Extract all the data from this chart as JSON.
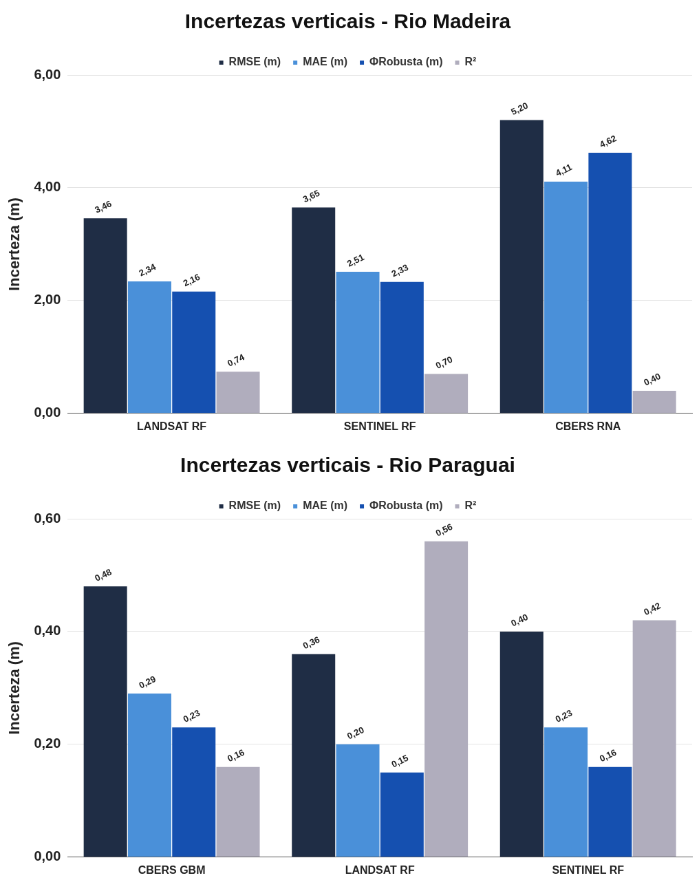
{
  "chart_data": [
    {
      "type": "bar",
      "title": "Incertezas verticais - Rio Madeira",
      "ylabel": "Incerteza (m)",
      "categories": [
        "LANDSAT RF",
        "SENTINEL RF",
        "CBERS RNA"
      ],
      "ylim": [
        0,
        6
      ],
      "yticks": [
        {
          "value": 0,
          "label": "0,00"
        },
        {
          "value": 2,
          "label": "2,00"
        },
        {
          "value": 4,
          "label": "4,00"
        },
        {
          "value": 6,
          "label": "6,00"
        }
      ],
      "grid": "y",
      "legend": "top",
      "series": [
        {
          "name": "RMSE (m)",
          "color": "#1f2d45",
          "values": [
            3.46,
            3.65,
            5.2
          ],
          "value_labels": [
            "3,46",
            "3,65",
            "5,20"
          ]
        },
        {
          "name": "MAE (m)",
          "color": "#4a90d9",
          "values": [
            2.34,
            2.51,
            4.11
          ],
          "value_labels": [
            "2,34",
            "2,51",
            "4,11"
          ]
        },
        {
          "name": "ΦRobusta (m)",
          "color": "#1550b0",
          "values": [
            2.16,
            2.33,
            4.62
          ],
          "value_labels": [
            "2,16",
            "2,33",
            "4,62"
          ]
        },
        {
          "name": "R²",
          "color": "#b0adbd",
          "values": [
            0.74,
            0.7,
            0.4
          ],
          "value_labels": [
            "0,74",
            "0,70",
            "0,40"
          ]
        }
      ]
    },
    {
      "type": "bar",
      "title": "Incertezas verticais - Rio Paraguai",
      "ylabel": "Incerteza (m)",
      "categories": [
        "CBERS GBM",
        "LANDSAT RF",
        "SENTINEL RF"
      ],
      "ylim": [
        0,
        0.6
      ],
      "yticks": [
        {
          "value": 0,
          "label": "0,00"
        },
        {
          "value": 0.2,
          "label": "0,20"
        },
        {
          "value": 0.4,
          "label": "0,40"
        },
        {
          "value": 0.6,
          "label": "0,60"
        }
      ],
      "grid": "y",
      "legend": "top",
      "series": [
        {
          "name": "RMSE (m)",
          "color": "#1f2d45",
          "values": [
            0.48,
            0.36,
            0.4
          ],
          "value_labels": [
            "0,48",
            "0,36",
            "0,40"
          ]
        },
        {
          "name": "MAE (m)",
          "color": "#4a90d9",
          "values": [
            0.29,
            0.2,
            0.23
          ],
          "value_labels": [
            "0,29",
            "0,20",
            "0,23"
          ]
        },
        {
          "name": "ΦRobusta (m)",
          "color": "#1550b0",
          "values": [
            0.23,
            0.15,
            0.16
          ],
          "value_labels": [
            "0,23",
            "0,15",
            "0,16"
          ]
        },
        {
          "name": "R²",
          "color": "#b0adbd",
          "values": [
            0.16,
            0.56,
            0.42
          ],
          "value_labels": [
            "0,16",
            "0,56",
            "0,42"
          ]
        }
      ]
    }
  ]
}
